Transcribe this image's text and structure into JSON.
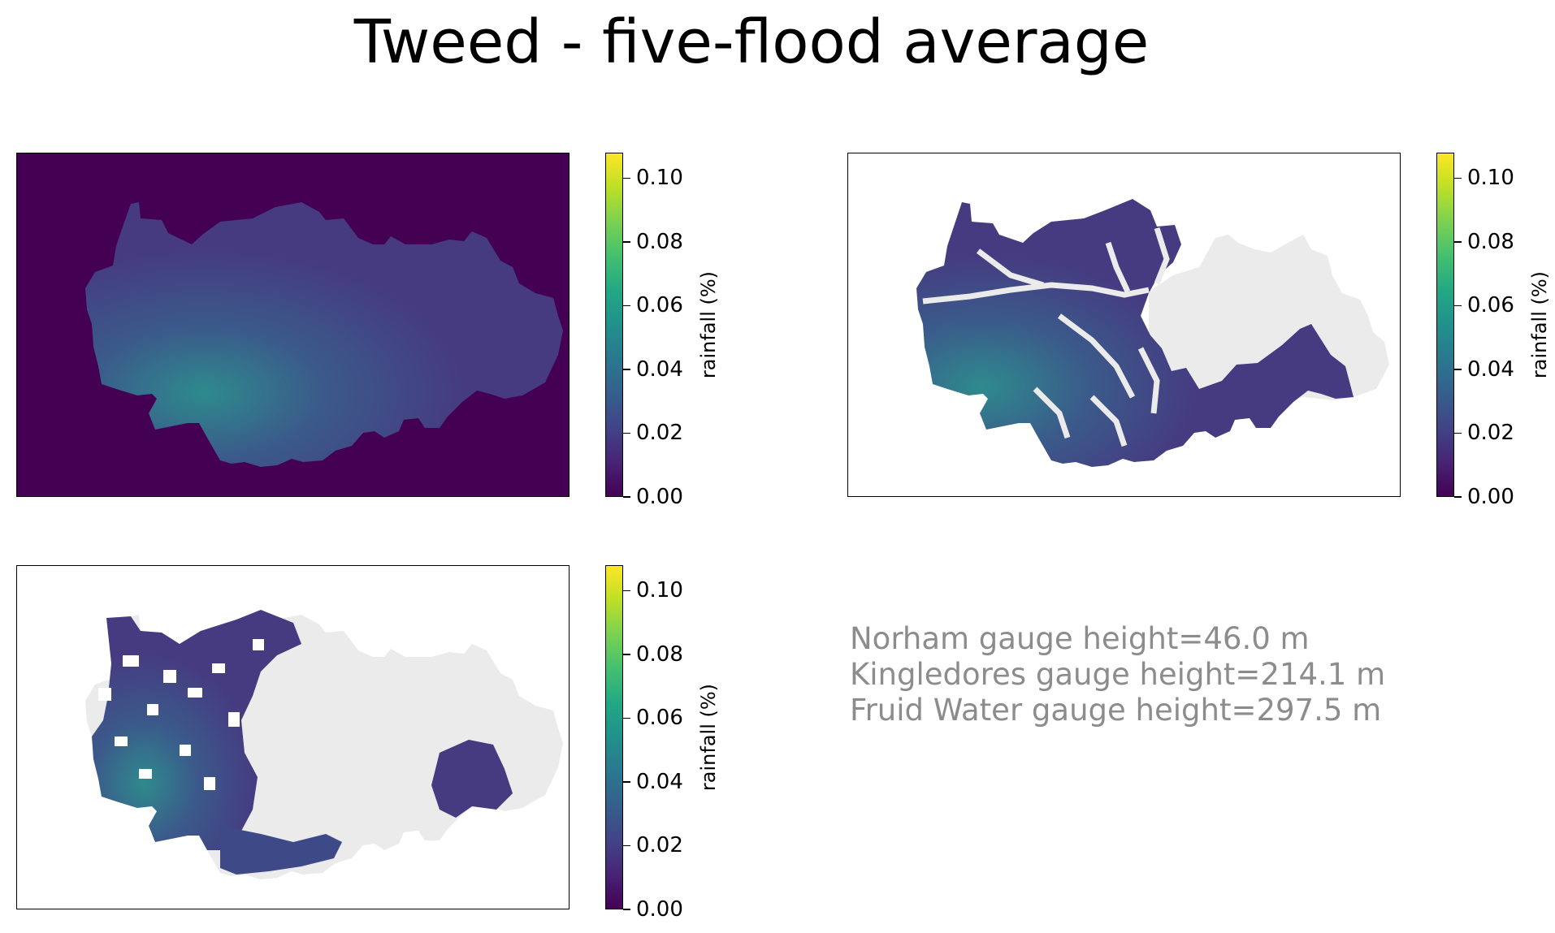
{
  "title": "Tweed - five-flood average",
  "chart_data": [
    {
      "type": "heatmap",
      "panel": "top-left",
      "description_values": {
        "background_value": 0.0,
        "peak_value": 0.05,
        "typical_value": 0.02
      },
      "masked": false,
      "colorbar": {
        "label": "rainfall (%)",
        "range": [
          0,
          0.108
        ],
        "ticks": [
          "0.00",
          "0.02",
          "0.04",
          "0.06",
          "0.08",
          "0.10"
        ],
        "colormap": "viridis"
      }
    },
    {
      "type": "heatmap",
      "panel": "top-right",
      "masked": true,
      "mask_color": "#ebebeb",
      "colorbar": {
        "label": "rainfall (%)",
        "range": [
          0,
          0.108
        ],
        "ticks": [
          "0.00",
          "0.02",
          "0.04",
          "0.06",
          "0.08",
          "0.10"
        ],
        "colormap": "viridis"
      }
    },
    {
      "type": "heatmap",
      "panel": "bottom-left",
      "masked": true,
      "mask_color": "#ebebeb",
      "colorbar": {
        "label": "rainfall (%)",
        "range": [
          0,
          0.108
        ],
        "ticks": [
          "0.00",
          "0.02",
          "0.04",
          "0.06",
          "0.08",
          "0.10"
        ],
        "colormap": "viridis"
      }
    }
  ],
  "annotations": [
    "Norham gauge height=46.0 m",
    "Kingledores gauge height=214.1 m",
    "Fruid Water gauge height=297.5 m"
  ],
  "colors": {
    "background_dark": "#440154",
    "catchment_purple": "#453680",
    "catchment_teal": "#2c8a8c",
    "masked_grey": "#ebebeb",
    "annotation_text": "#8c8c8c"
  }
}
